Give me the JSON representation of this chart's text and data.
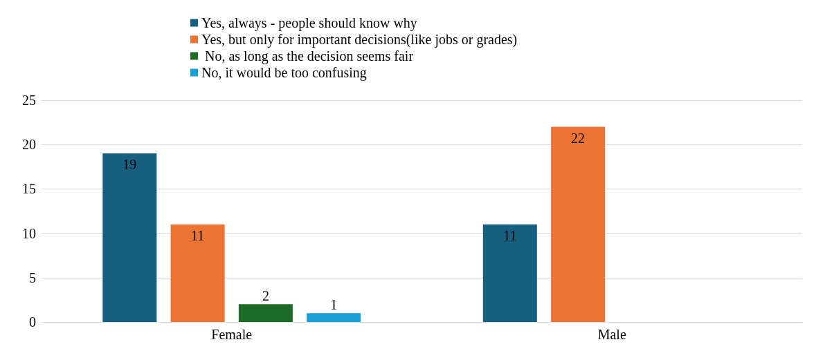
{
  "chart_data": {
    "type": "bar",
    "categories": [
      "Female",
      "Male"
    ],
    "series": [
      {
        "name": "Yes, always - people should know why",
        "color": "#175f80",
        "values": [
          19,
          11
        ]
      },
      {
        "name": "Yes, but only for important decisions(like jobs or grades)",
        "color": "#eb7334",
        "values": [
          11,
          22
        ]
      },
      {
        "name": " No, as long as the decision seems fair",
        "color": "#1e6b27",
        "values": [
          2,
          null
        ]
      },
      {
        "name": "No, it would be too confusing",
        "color": "#199fd8",
        "values": [
          1,
          null
        ]
      }
    ],
    "ylim": [
      0,
      25
    ],
    "yticks": [
      0,
      5,
      10,
      15,
      20,
      25
    ],
    "grid": "y",
    "legend": "top",
    "data_labels": true
  }
}
